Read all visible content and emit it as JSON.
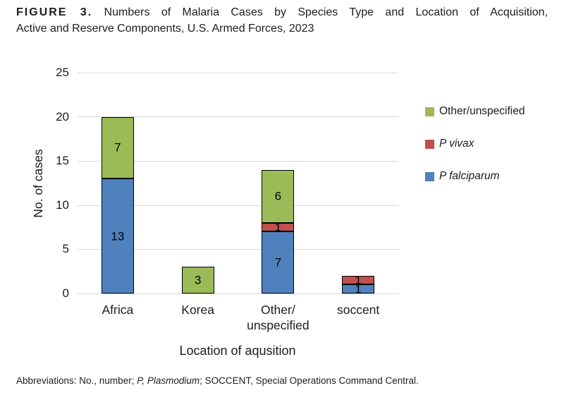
{
  "figure": {
    "title_label": "FIGURE 3.",
    "title_line1": "Numbers of Malaria Cases by Species Type and Location of Acquisition,",
    "title_line2": "Active and Reserve Components, U.S. Armed Forces, 2023"
  },
  "chart_data": {
    "type": "bar",
    "stacked": true,
    "categories": [
      "Africa",
      "Korea",
      "Other/\nunspecified",
      "soccent"
    ],
    "series": [
      {
        "name": "P falciparum",
        "color": "#4f81bd",
        "values": [
          13,
          0,
          7,
          1
        ]
      },
      {
        "name": "P vivax",
        "color": "#c0504d",
        "values": [
          0,
          0,
          1,
          1
        ]
      },
      {
        "name": "Other/unspecified",
        "color": "#9bbb59",
        "values": [
          7,
          3,
          6,
          0
        ]
      }
    ],
    "totals": [
      20,
      3,
      14,
      2
    ],
    "xlabel": "Location of aqusition",
    "ylabel": "No. of cases",
    "ylim": [
      0,
      25
    ],
    "yticks": [
      0,
      5,
      10,
      15,
      20,
      25
    ],
    "grid": true,
    "gridline_color": "#d9d9d9",
    "bar_border_color": "#000000",
    "legend_position": "right"
  },
  "legend": {
    "items": [
      {
        "label": "Other/unspecified",
        "color": "#9bbb59",
        "italic": false
      },
      {
        "label": "P vivax",
        "color": "#c0504d",
        "italic": true
      },
      {
        "label": "P falciparum",
        "color": "#4f81bd",
        "italic": true
      }
    ]
  },
  "footnote": {
    "segments": [
      {
        "text": "Abbreviations: No., number; ",
        "italic": false
      },
      {
        "text": "P, Plasmodium",
        "italic": true
      },
      {
        "text": "; SOCCENT, Special Operations Command Central.",
        "italic": false
      }
    ]
  }
}
